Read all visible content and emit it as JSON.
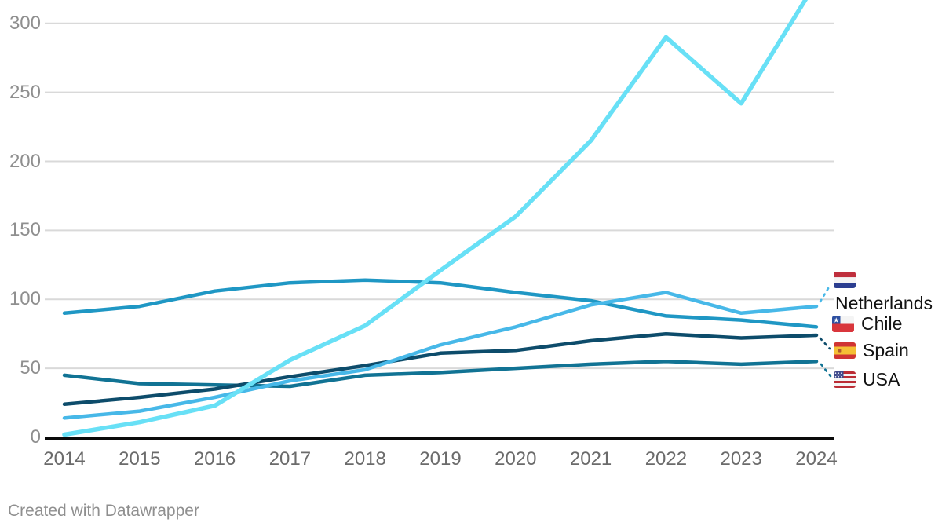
{
  "chart_data": {
    "type": "line",
    "title": "",
    "xlabel": "",
    "ylabel": "",
    "categories": [
      "2014",
      "2015",
      "2016",
      "2017",
      "2018",
      "2019",
      "2020",
      "2021",
      "2022",
      "2023",
      "2024"
    ],
    "y_ticks": [
      0,
      50,
      100,
      150,
      200,
      250,
      300
    ],
    "ylim": [
      0,
      316
    ],
    "grid": true,
    "legend_position": "right of line ends, with country flags and dashed leader lines",
    "note": "lightest cyan line rises off the top of the visible plot area and has no visible label",
    "series": [
      {
        "label": "Chile",
        "color": "#1f97c4",
        "values": [
          90,
          95,
          106,
          112,
          114,
          112,
          105,
          99,
          88,
          85,
          80
        ]
      },
      {
        "label": "USA",
        "color": "#117394",
        "values": [
          45,
          39,
          38,
          37,
          45,
          47,
          50,
          53,
          55,
          53,
          55
        ]
      },
      {
        "label": "Spain",
        "color": "#0d4c6b",
        "values": [
          24,
          29,
          35,
          44,
          52,
          61,
          63,
          70,
          75,
          72,
          74
        ]
      },
      {
        "label": "Netherlands",
        "color": "#47b8e8",
        "values": [
          14,
          19,
          29,
          41,
          49,
          67,
          80,
          96,
          105,
          90,
          95
        ]
      },
      {
        "label": "",
        "color": "#68e0f6",
        "values": [
          2,
          11,
          23,
          56,
          81,
          121,
          160,
          215,
          290,
          242,
          330
        ]
      }
    ]
  },
  "legend": {
    "entries": [
      {
        "label": "Netherlands",
        "flag_icon": "netherlands-flag-icon"
      },
      {
        "label": "Chile",
        "flag_icon": "chile-flag-icon"
      },
      {
        "label": "Spain",
        "flag_icon": "spain-flag-icon"
      },
      {
        "label": "USA",
        "flag_icon": "usa-flag-icon"
      }
    ]
  },
  "colors": {
    "grid": "#d9d9d9",
    "axis": "#0a0a0a",
    "x_tick_text": "#6b6b6b",
    "y_tick_text": "#8f8f8f",
    "footer_text": "#8f8f8f"
  },
  "footer": {
    "attribution": "Created with Datawrapper"
  }
}
